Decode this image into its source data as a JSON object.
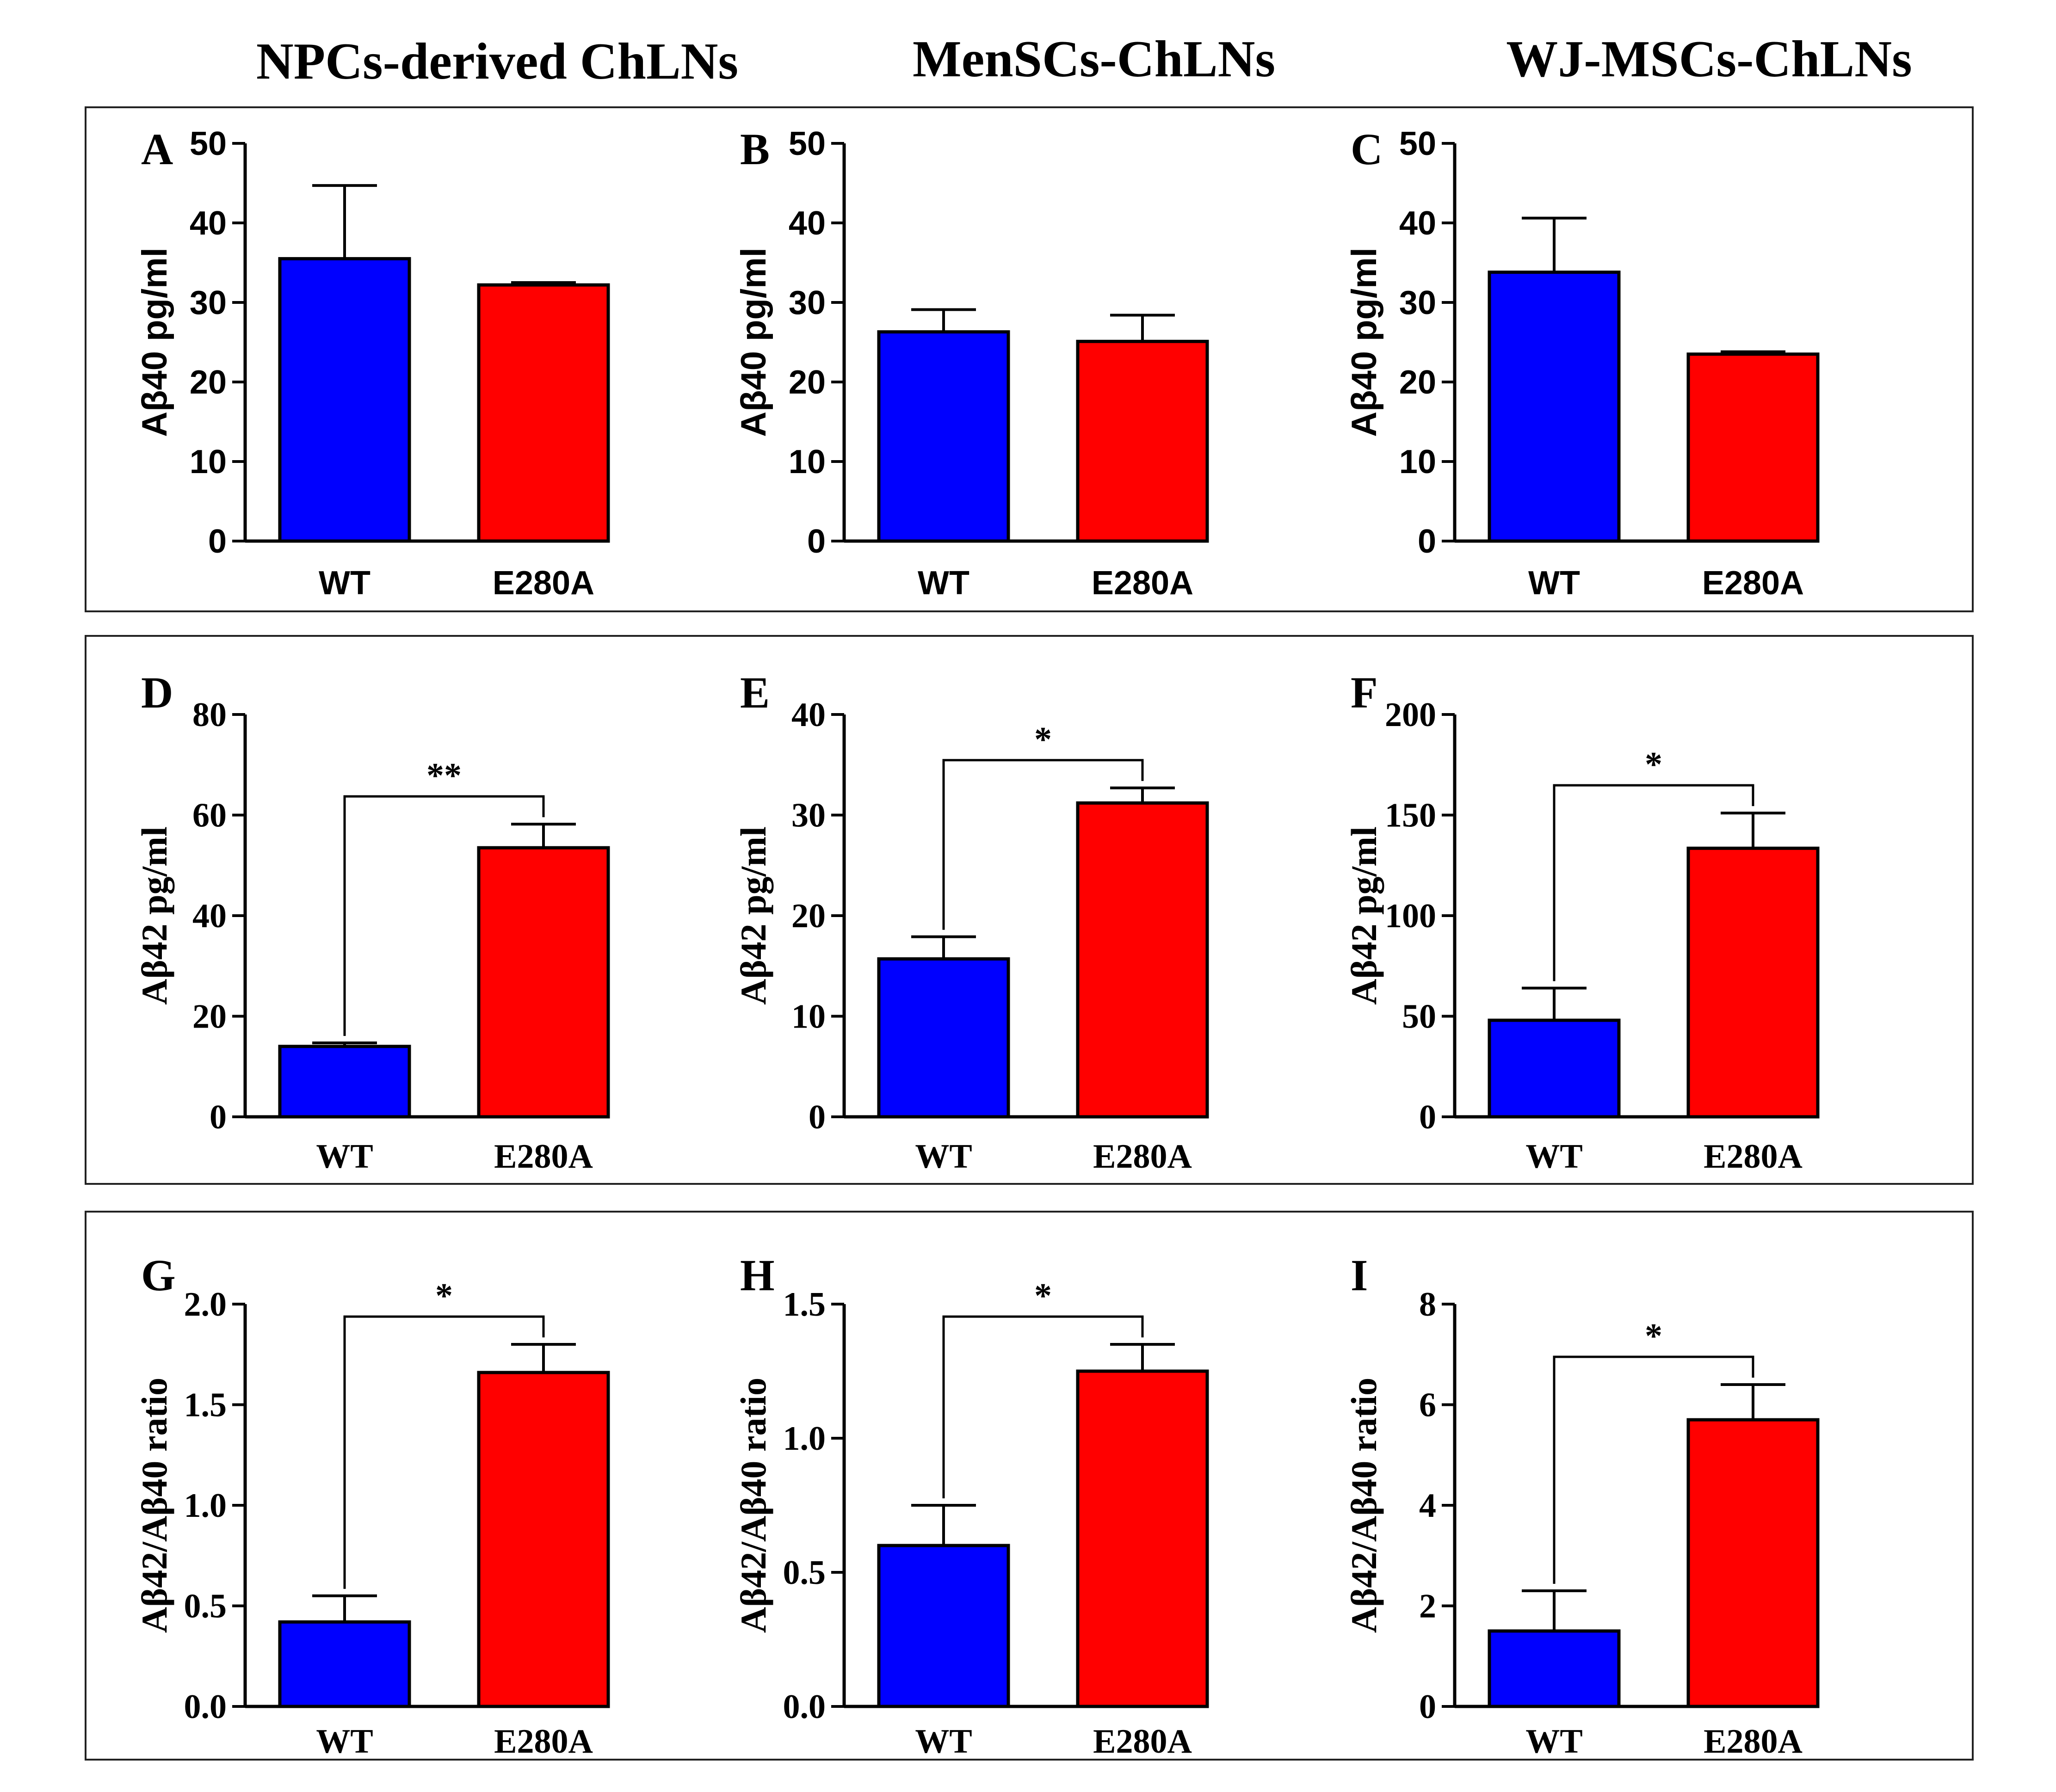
{
  "column_titles": [
    "NPCs-derived ChLNs",
    "MenSCs-ChLNs",
    "WJ-MSCs-ChLNs"
  ],
  "colors": {
    "WT": "#0000ff",
    "E280A": "#ff0000",
    "axis": "#000000"
  },
  "chart_data": [
    {
      "panel": "A",
      "type": "bar",
      "categories": [
        "WT",
        "E280A"
      ],
      "values": [
        35.5,
        32.2
      ],
      "errors": [
        9.2,
        0.3
      ],
      "ylabel": "Aβ40 pg/ml",
      "ylim": [
        0,
        50
      ],
      "yticks": [
        "0",
        "10",
        "20",
        "30",
        "40",
        "50"
      ],
      "significance": ""
    },
    {
      "panel": "B",
      "type": "bar",
      "categories": [
        "WT",
        "E280A"
      ],
      "values": [
        26.3,
        25.1
      ],
      "errors": [
        2.8,
        3.3
      ],
      "ylabel": "Aβ40 pg/ml",
      "ylim": [
        0,
        50
      ],
      "yticks": [
        "0",
        "10",
        "20",
        "30",
        "40",
        "50"
      ],
      "significance": ""
    },
    {
      "panel": "C",
      "type": "bar",
      "categories": [
        "WT",
        "E280A"
      ],
      "values": [
        33.8,
        23.5
      ],
      "errors": [
        6.8,
        0.3
      ],
      "ylabel": "Aβ40 pg/ml",
      "ylim": [
        0,
        50
      ],
      "yticks": [
        "0",
        "10",
        "20",
        "30",
        "40",
        "50"
      ],
      "significance": ""
    },
    {
      "panel": "D",
      "type": "bar",
      "categories": [
        "WT",
        "E280A"
      ],
      "values": [
        14,
        53.5
      ],
      "errors": [
        0.7,
        4.7
      ],
      "ylabel": "Aβ42 pg/ml",
      "ylim": [
        0,
        80
      ],
      "yticks": [
        "0",
        "20",
        "40",
        "60",
        "80"
      ],
      "significance": "**"
    },
    {
      "panel": "E",
      "type": "bar",
      "categories": [
        "WT",
        "E280A"
      ],
      "values": [
        15.7,
        31.2
      ],
      "errors": [
        2.2,
        1.5
      ],
      "ylabel": "Aβ42 pg/ml",
      "ylim": [
        0,
        40
      ],
      "yticks": [
        "0",
        "10",
        "20",
        "30",
        "40"
      ],
      "significance": "*"
    },
    {
      "panel": "F",
      "type": "bar",
      "categories": [
        "WT",
        "E280A"
      ],
      "values": [
        48,
        133.5
      ],
      "errors": [
        16,
        17.5
      ],
      "ylabel": "Aβ42 pg/ml",
      "ylim": [
        0,
        200
      ],
      "yticks": [
        "0",
        "50",
        "100",
        "150",
        "200"
      ],
      "significance": "*"
    },
    {
      "panel": "G",
      "type": "bar",
      "categories": [
        "WT",
        "E280A"
      ],
      "values": [
        0.42,
        1.66
      ],
      "errors": [
        0.13,
        0.14
      ],
      "ylabel": "Aβ42/Aβ40 ratio",
      "ylim": [
        0,
        2.0
      ],
      "yticks": [
        "0.0",
        "0.5",
        "1.0",
        "1.5",
        "2.0"
      ],
      "significance": "*"
    },
    {
      "panel": "H",
      "type": "bar",
      "categories": [
        "WT",
        "E280A"
      ],
      "values": [
        0.6,
        1.25
      ],
      "errors": [
        0.15,
        0.1
      ],
      "ylabel": "Aβ42/Aβ40 ratio",
      "ylim": [
        0,
        1.5
      ],
      "yticks": [
        "0.0",
        "0.5",
        "1.0",
        "1.5"
      ],
      "significance": "*"
    },
    {
      "panel": "I",
      "type": "bar",
      "categories": [
        "WT",
        "E280A"
      ],
      "values": [
        1.5,
        5.7
      ],
      "errors": [
        0.8,
        0.7
      ],
      "ylabel": "Aβ42/Aβ40 ratio",
      "ylim": [
        0,
        8
      ],
      "yticks": [
        "0",
        "2",
        "4",
        "6",
        "8"
      ],
      "significance": "*"
    }
  ]
}
